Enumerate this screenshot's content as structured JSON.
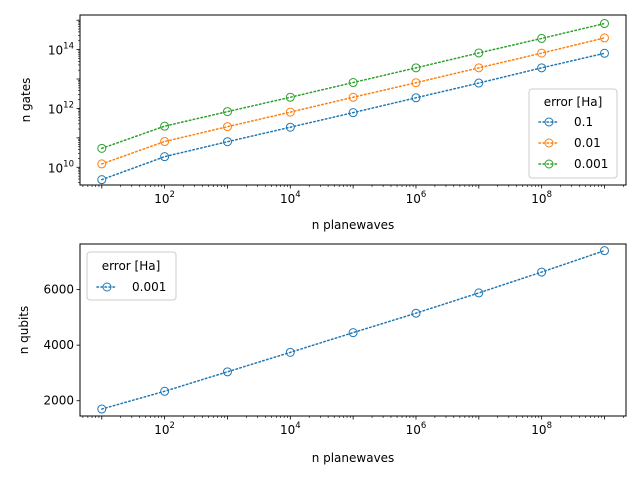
{
  "chart_data": [
    {
      "type": "line",
      "xlabel": "n planewaves",
      "ylabel": "n gates",
      "x_scale": "log",
      "y_scale": "log",
      "xlim": [
        4.5,
        2200000000.0
      ],
      "ylim": [
        2500000000.0,
        1500000000000000.0
      ],
      "x_tick_labels": [
        {
          "base": "10",
          "exp": "2",
          "value": 100
        },
        {
          "base": "10",
          "exp": "4",
          "value": 10000
        },
        {
          "base": "10",
          "exp": "6",
          "value": 1000000
        },
        {
          "base": "10",
          "exp": "8",
          "value": 100000000
        }
      ],
      "y_tick_labels": [
        {
          "base": "10",
          "exp": "10",
          "value": 10000000000.0
        },
        {
          "base": "10",
          "exp": "12",
          "value": 1000000000000.0
        },
        {
          "base": "10",
          "exp": "14",
          "value": 100000000000000.0
        }
      ],
      "x": [
        10,
        100,
        1000,
        10000,
        100000,
        1000000,
        10000000,
        100000000,
        1000000000
      ],
      "legend": {
        "title": "error [Ha]",
        "position": "center-right"
      },
      "series": [
        {
          "name": "0.1",
          "color": "#1f77b4",
          "values": [
            3800000000.0,
            23000000000.0,
            74000000000.0,
            230000000000.0,
            720000000000.0,
            2300000000000.0,
            7300000000000.0,
            24000000000000.0,
            75000000000000.0
          ]
        },
        {
          "name": "0.01",
          "color": "#ff7f0e",
          "values": [
            13000000000.0,
            75000000000.0,
            240000000000.0,
            750000000000.0,
            2400000000000.0,
            7500000000000.0,
            24000000000000.0,
            76000000000000.0,
            250000000000000.0
          ]
        },
        {
          "name": "0.001",
          "color": "#2ca02c",
          "values": [
            44000000000.0,
            250000000000.0,
            780000000000.0,
            2400000000000.0,
            7600000000000.0,
            24000000000000.0,
            77000000000000.0,
            240000000000000.0,
            770000000000000.0
          ]
        }
      ]
    },
    {
      "type": "line",
      "xlabel": "n planewaves",
      "ylabel": "n qubits",
      "x_scale": "log",
      "y_scale": "linear",
      "xlim": [
        4.5,
        2200000000.0
      ],
      "ylim": [
        1450,
        7640
      ],
      "x_tick_labels": [
        {
          "base": "10",
          "exp": "2",
          "value": 100
        },
        {
          "base": "10",
          "exp": "4",
          "value": 10000
        },
        {
          "base": "10",
          "exp": "6",
          "value": 1000000
        },
        {
          "base": "10",
          "exp": "8",
          "value": 100000000
        }
      ],
      "y_tick_labels": [
        {
          "label": "2000",
          "value": 2000
        },
        {
          "label": "4000",
          "value": 4000
        },
        {
          "label": "6000",
          "value": 6000
        }
      ],
      "x": [
        10,
        100,
        1000,
        10000,
        100000,
        1000000,
        10000000,
        100000000,
        1000000000
      ],
      "legend": {
        "title": "error [Ha]",
        "position": "top-left"
      },
      "series": [
        {
          "name": "0.001",
          "color": "#1f77b4",
          "values": [
            1700,
            2340,
            3040,
            3740,
            4450,
            5150,
            5880,
            6630,
            7400
          ]
        }
      ]
    }
  ]
}
